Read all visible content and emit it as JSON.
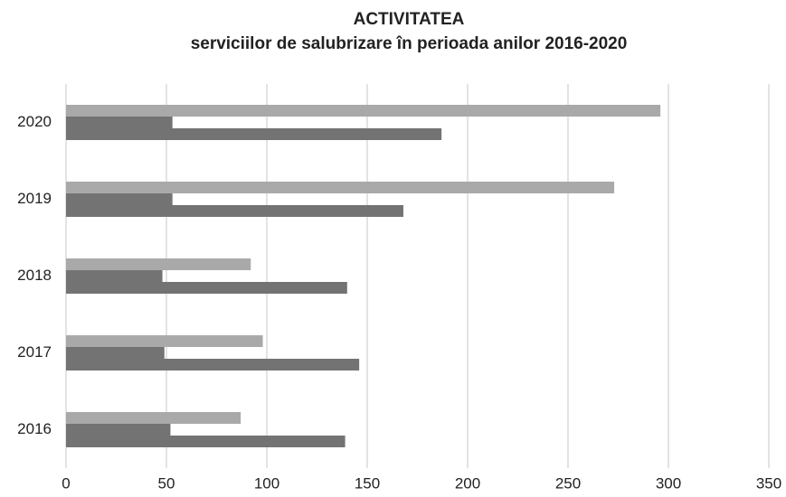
{
  "chart_data": {
    "type": "hbar",
    "title": "ACTIVITATEA",
    "subtitle": "serviciilor de salubrizare în  perioada anilor 2016-2020",
    "categories": [
      "2020",
      "2019",
      "2018",
      "2017",
      "2016"
    ],
    "series": [
      {
        "color": "#a9a9a9",
        "values": [
          296,
          273,
          92,
          98,
          87
        ]
      },
      {
        "color": "#737373",
        "values": [
          53,
          53,
          48,
          49,
          52
        ]
      },
      {
        "color": "#737373",
        "values": [
          187,
          168,
          140,
          146,
          139
        ]
      }
    ],
    "xlim": [
      0,
      350
    ],
    "xticks": [
      0,
      50,
      100,
      150,
      200,
      250,
      300,
      350
    ],
    "grid": true
  }
}
